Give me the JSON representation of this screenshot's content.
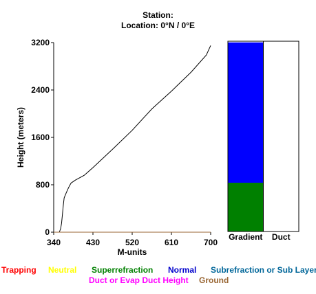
{
  "header": {
    "station_label": "Station:",
    "location_label": "Location:  0°N /  0°E"
  },
  "chart_data": [
    {
      "type": "line",
      "xlabel": "M-units",
      "ylabel": "Height (meters)",
      "xlim": [
        340,
        700
      ],
      "ylim": [
        0,
        3200
      ],
      "xticks": [
        340,
        430,
        520,
        610,
        700
      ],
      "yticks": [
        0,
        800,
        1600,
        2400,
        3200
      ],
      "grid": false,
      "series": [
        {
          "color": "#000000",
          "points": [
            [
              353,
              0
            ],
            [
              356,
              60
            ],
            [
              358,
              150
            ],
            [
              360,
              300
            ],
            [
              362,
              450
            ],
            [
              364,
              580
            ],
            [
              368,
              650
            ],
            [
              372,
              720
            ],
            [
              376,
              780
            ],
            [
              380,
              830
            ],
            [
              390,
              880
            ],
            [
              410,
              960
            ],
            [
              430,
              1090
            ],
            [
              475,
              1400
            ],
            [
              520,
              1720
            ],
            [
              565,
              2080
            ],
            [
              610,
              2380
            ],
            [
              655,
              2700
            ],
            [
              690,
              2990
            ],
            [
              700,
              3150
            ]
          ]
        },
        {
          "color": "#996633",
          "points": [
            [
              340,
              0
            ],
            [
              700,
              0
            ]
          ]
        }
      ]
    },
    {
      "type": "bar",
      "categories": [
        "Gradient",
        "Duct"
      ],
      "ylim": [
        0,
        3200
      ],
      "segments": [
        {
          "category": "Gradient",
          "from": 0,
          "to": 820,
          "color": "#008000"
        },
        {
          "category": "Gradient",
          "from": 820,
          "to": 3180,
          "color": "#0000ff"
        }
      ]
    }
  ],
  "legend": {
    "trapping": {
      "label": "Trapping",
      "color": "#ff0000"
    },
    "neutral": {
      "label": "Neutral",
      "color": "#ffff00"
    },
    "superrefraction": {
      "label": "Superrefraction",
      "color": "#008000"
    },
    "normal": {
      "label": "Normal",
      "color": "#0000cc"
    },
    "subrefraction": {
      "label": "Subrefraction or Sub Layer",
      "color": "#006699"
    },
    "duct": {
      "label": "Duct or Evap Duct Height",
      "color": "#ff00ff"
    },
    "ground": {
      "label": "Ground",
      "color": "#996633"
    }
  }
}
